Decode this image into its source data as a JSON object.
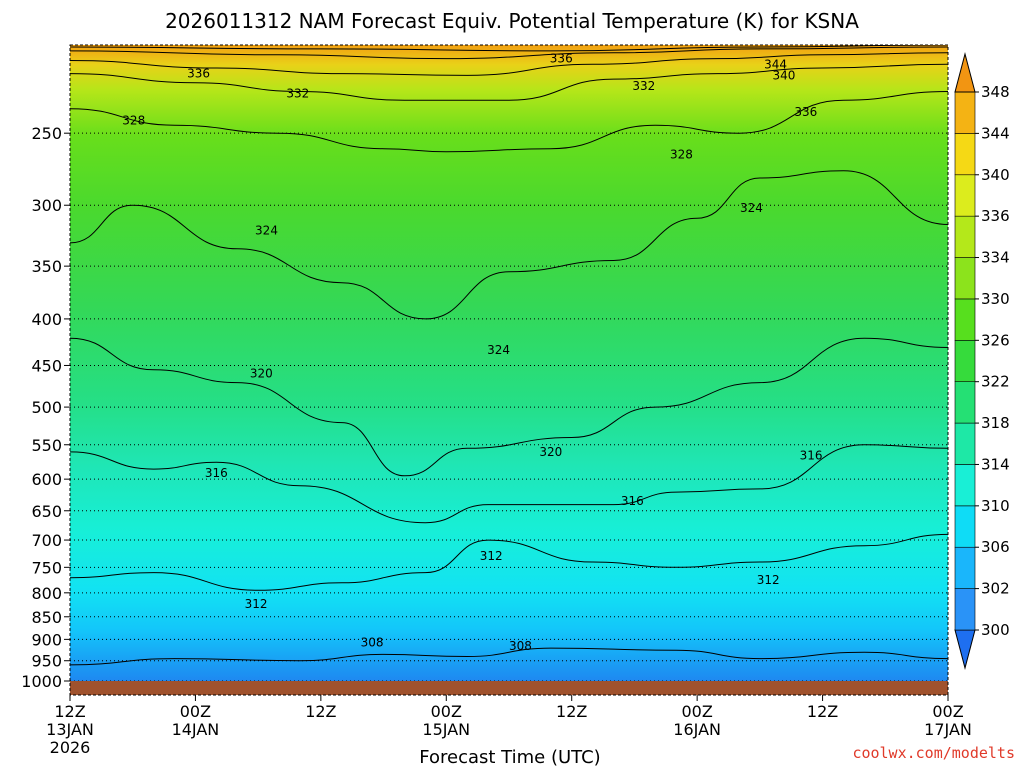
{
  "chart_data": {
    "type": "heatmap",
    "title": "2026011312 NAM Forecast Equiv. Potential Temperature (K) for KSNA",
    "xlabel": "Forecast Time (UTC)",
    "ylabel": "",
    "credit": "coolwx.com/modelts",
    "y_axis": {
      "scale": "pressure",
      "range": [
        1000,
        200
      ],
      "ticks": [
        250,
        300,
        350,
        400,
        450,
        500,
        550,
        600,
        650,
        700,
        750,
        800,
        850,
        900,
        950,
        1000
      ]
    },
    "x_axis": {
      "range_hours": [
        0,
        84
      ],
      "ticks": [
        {
          "hour": 0,
          "labels": [
            "12Z",
            "13JAN",
            "2026"
          ]
        },
        {
          "hour": 12,
          "labels": [
            "00Z",
            "14JAN"
          ]
        },
        {
          "hour": 24,
          "labels": [
            "12Z"
          ]
        },
        {
          "hour": 36,
          "labels": [
            "00Z",
            "15JAN"
          ]
        },
        {
          "hour": 48,
          "labels": [
            "12Z"
          ]
        },
        {
          "hour": 60,
          "labels": [
            "00Z",
            "16JAN"
          ]
        },
        {
          "hour": 72,
          "labels": [
            "12Z"
          ]
        },
        {
          "hour": 84,
          "labels": [
            "00Z",
            "17JAN"
          ]
        }
      ]
    },
    "colorbar": {
      "levels": [
        300,
        302,
        306,
        310,
        314,
        318,
        322,
        326,
        330,
        334,
        336,
        340,
        344,
        348
      ],
      "colors": [
        "#1e6ff0",
        "#2a93f7",
        "#1ab6fb",
        "#0fdcf6",
        "#19efd6",
        "#1ee8a6",
        "#25e074",
        "#36db3c",
        "#57df1e",
        "#8ce31c",
        "#b4e81a",
        "#dcec1d",
        "#f5d915",
        "#f4b314",
        "#f29512"
      ],
      "extend": "both"
    },
    "ground_color": "#a0522d",
    "grid": "dotted pressure lines",
    "isotherms_sampled": [
      {
        "level": 308,
        "points": [
          [
            0,
            960
          ],
          [
            10,
            945
          ],
          [
            22,
            950
          ],
          [
            30,
            935
          ],
          [
            38,
            940
          ],
          [
            46,
            920
          ],
          [
            58,
            925
          ],
          [
            66,
            945
          ],
          [
            76,
            930
          ],
          [
            84,
            945
          ]
        ]
      },
      {
        "level": 312,
        "points": [
          [
            0,
            770
          ],
          [
            8,
            760
          ],
          [
            18,
            795
          ],
          [
            26,
            780
          ],
          [
            34,
            760
          ],
          [
            40,
            700
          ],
          [
            50,
            740
          ],
          [
            58,
            750
          ],
          [
            66,
            740
          ],
          [
            76,
            710
          ],
          [
            84,
            690
          ]
        ]
      },
      {
        "level": 316,
        "points": [
          [
            0,
            560
          ],
          [
            8,
            585
          ],
          [
            14,
            575
          ],
          [
            22,
            610
          ],
          [
            34,
            670
          ],
          [
            40,
            640
          ],
          [
            52,
            640
          ],
          [
            58,
            620
          ],
          [
            66,
            615
          ],
          [
            76,
            550
          ],
          [
            84,
            555
          ]
        ]
      },
      {
        "level": 320,
        "points": [
          [
            0,
            420
          ],
          [
            8,
            455
          ],
          [
            16,
            470
          ],
          [
            26,
            520
          ],
          [
            32,
            595
          ],
          [
            38,
            555
          ],
          [
            48,
            540
          ],
          [
            56,
            500
          ],
          [
            66,
            470
          ],
          [
            76,
            420
          ],
          [
            84,
            430
          ]
        ]
      },
      {
        "level": 324,
        "points": [
          [
            0,
            330
          ],
          [
            6,
            300
          ],
          [
            16,
            335
          ],
          [
            26,
            365
          ],
          [
            34,
            400
          ],
          [
            42,
            355
          ],
          [
            52,
            345
          ],
          [
            60,
            310
          ],
          [
            66,
            280
          ],
          [
            74,
            275
          ],
          [
            84,
            315
          ]
        ]
      },
      {
        "level": 328,
        "points": [
          [
            0,
            235
          ],
          [
            10,
            245
          ],
          [
            20,
            250
          ],
          [
            30,
            260
          ],
          [
            36,
            262
          ],
          [
            46,
            260
          ],
          [
            56,
            245
          ],
          [
            64,
            250
          ],
          [
            74,
            230
          ],
          [
            84,
            225
          ]
        ]
      },
      {
        "level": 332,
        "points": [
          [
            0,
            215
          ],
          [
            12,
            220
          ],
          [
            22,
            225
          ],
          [
            32,
            230
          ],
          [
            42,
            230
          ],
          [
            52,
            218
          ],
          [
            62,
            215
          ],
          [
            72,
            212
          ],
          [
            84,
            210
          ]
        ]
      },
      {
        "level": 336,
        "points": [
          [
            0,
            208
          ],
          [
            14,
            212
          ],
          [
            26,
            215
          ],
          [
            38,
            216
          ],
          [
            50,
            210
          ],
          [
            62,
            207
          ],
          [
            72,
            205
          ],
          [
            84,
            204
          ]
        ]
      },
      {
        "level": 340,
        "points": [
          [
            0,
            203
          ],
          [
            20,
            205
          ],
          [
            36,
            207
          ],
          [
            52,
            204
          ],
          [
            66,
            202
          ],
          [
            84,
            201
          ]
        ]
      },
      {
        "level": 344,
        "points": [
          [
            0,
            201
          ],
          [
            24,
            202
          ],
          [
            46,
            203
          ],
          [
            66,
            201
          ],
          [
            84,
            200
          ]
        ]
      }
    ],
    "contour_labels": [
      {
        "text": "336",
        "hour": 12.3,
        "p": 215
      },
      {
        "text": "336",
        "hour": 47.0,
        "p": 207
      },
      {
        "text": "344",
        "hour": 67.5,
        "p": 210
      },
      {
        "text": "340",
        "hour": 68.3,
        "p": 216
      },
      {
        "text": "336",
        "hour": 70.4,
        "p": 237
      },
      {
        "text": "332",
        "hour": 21.8,
        "p": 226
      },
      {
        "text": "332",
        "hour": 54.9,
        "p": 222
      },
      {
        "text": "328",
        "hour": 6.1,
        "p": 242
      },
      {
        "text": "328",
        "hour": 58.5,
        "p": 264
      },
      {
        "text": "324",
        "hour": 18.8,
        "p": 320
      },
      {
        "text": "324",
        "hour": 65.2,
        "p": 302
      },
      {
        "text": "324",
        "hour": 41.0,
        "p": 433
      },
      {
        "text": "320",
        "hour": 18.3,
        "p": 459
      },
      {
        "text": "320",
        "hour": 46.0,
        "p": 560
      },
      {
        "text": "316",
        "hour": 14.0,
        "p": 591
      },
      {
        "text": "316",
        "hour": 53.8,
        "p": 634
      },
      {
        "text": "316",
        "hour": 70.9,
        "p": 565
      },
      {
        "text": "312",
        "hour": 40.3,
        "p": 729
      },
      {
        "text": "312",
        "hour": 66.8,
        "p": 774
      },
      {
        "text": "312",
        "hour": 17.8,
        "p": 823
      },
      {
        "text": "308",
        "hour": 28.9,
        "p": 907
      },
      {
        "text": "308",
        "hour": 43.1,
        "p": 915
      }
    ]
  }
}
